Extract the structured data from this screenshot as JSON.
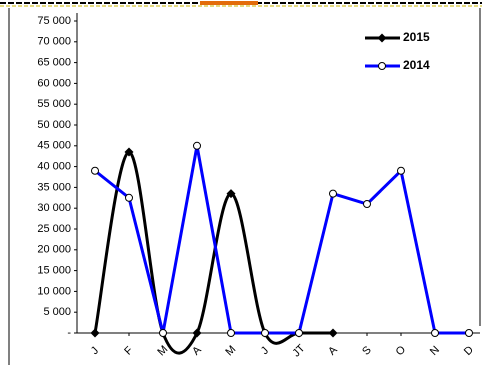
{
  "chart_data": {
    "type": "line",
    "categories": [
      "J",
      "F",
      "M",
      "A",
      "M",
      "J",
      "JT",
      "A",
      "S",
      "O",
      "N",
      "D"
    ],
    "series": [
      {
        "name": "2015",
        "color": "#000000",
        "marker": "diamond",
        "smooth": true,
        "values": [
          0,
          43500,
          0,
          0,
          33500,
          0,
          0,
          0,
          null,
          null,
          null,
          null
        ]
      },
      {
        "name": "2014",
        "color": "#0000ff",
        "marker": "circle",
        "smooth": false,
        "values": [
          39000,
          32500,
          0,
          45000,
          0,
          0,
          0,
          33500,
          31000,
          39000,
          0,
          0
        ]
      }
    ],
    "ylim": [
      0,
      75000
    ],
    "yticks": [
      {
        "value": 0,
        "label": "-"
      },
      {
        "value": 5000,
        "label": "5 000"
      },
      {
        "value": 10000,
        "label": "10 000"
      },
      {
        "value": 15000,
        "label": "15 000"
      },
      {
        "value": 20000,
        "label": "20 000"
      },
      {
        "value": 25000,
        "label": "25 000"
      },
      {
        "value": 30000,
        "label": "30 000"
      },
      {
        "value": 35000,
        "label": "35 000"
      },
      {
        "value": 40000,
        "label": "40 000"
      },
      {
        "value": 45000,
        "label": "45 000"
      },
      {
        "value": 50000,
        "label": "50 000"
      },
      {
        "value": 55000,
        "label": "55 000"
      },
      {
        "value": 60000,
        "label": "60 000"
      },
      {
        "value": 65000,
        "label": "65 000"
      },
      {
        "value": 70000,
        "label": "70 000"
      },
      {
        "value": 75000,
        "label": "75 000"
      }
    ],
    "grid": false
  }
}
